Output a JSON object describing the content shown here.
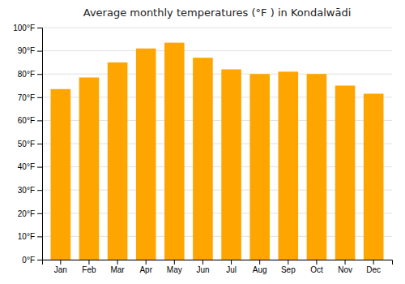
{
  "chart_data": {
    "type": "bar",
    "title": "Average monthly temperatures (°F ) in Kondalwādi",
    "categories": [
      "Jan",
      "Feb",
      "Mar",
      "Apr",
      "May",
      "Jun",
      "Jul",
      "Aug",
      "Sep",
      "Oct",
      "Nov",
      "Dec"
    ],
    "values": [
      73.5,
      78.5,
      85.0,
      91.0,
      93.5,
      87.0,
      82.0,
      80.0,
      81.0,
      80.0,
      75.0,
      71.5
    ],
    "color": "#FFA500",
    "ylim": [
      0,
      100
    ],
    "yticks": [
      {
        "value": 0,
        "label": "0°F"
      },
      {
        "value": 10,
        "label": "10°F"
      },
      {
        "value": 20,
        "label": "20°F"
      },
      {
        "value": 30,
        "label": "30°F"
      },
      {
        "value": 40,
        "label": "40°F"
      },
      {
        "value": 50,
        "label": "50°F"
      },
      {
        "value": 60,
        "label": "60°F"
      },
      {
        "value": 70,
        "label": "70°F"
      },
      {
        "value": 80,
        "label": "80°F"
      },
      {
        "value": 90,
        "label": "90°F"
      },
      {
        "value": 100,
        "label": "100°F"
      }
    ],
    "grid": true
  }
}
